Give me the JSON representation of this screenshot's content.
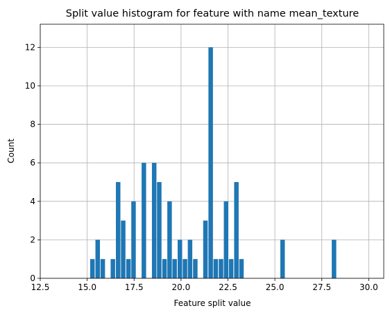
{
  "chart_data": {
    "type": "bar",
    "title": "Split value histogram for feature with name mean_texture",
    "xlabel": "Feature split value",
    "ylabel": "Count",
    "xlim": [
      12.5,
      30.8
    ],
    "ylim": [
      0,
      13.2
    ],
    "xticks": [
      12.5,
      15.0,
      17.5,
      20.0,
      22.5,
      25.0,
      27.5,
      30.0
    ],
    "xtick_labels": [
      "12.5",
      "15.0",
      "17.5",
      "20.0",
      "22.5",
      "25.0",
      "27.5",
      "30.0"
    ],
    "yticks": [
      0,
      2,
      4,
      6,
      8,
      10,
      12
    ],
    "ytick_labels": [
      "0",
      "2",
      "4",
      "6",
      "8",
      "10",
      "12"
    ],
    "grid": true,
    "bar_color": "#1f77b4",
    "bar_width": 0.24,
    "x": [
      15.28,
      15.56,
      15.83,
      16.37,
      16.65,
      16.92,
      17.2,
      17.47,
      18.02,
      18.57,
      18.84,
      19.12,
      19.39,
      19.66,
      19.94,
      20.21,
      20.48,
      20.76,
      21.3,
      21.58,
      21.85,
      22.13,
      22.4,
      22.67,
      22.95,
      23.22,
      25.41,
      28.15
    ],
    "values": [
      1,
      2,
      1,
      1,
      5,
      3,
      1,
      4,
      6,
      6,
      5,
      1,
      4,
      1,
      2,
      1,
      2,
      1,
      3,
      12,
      1,
      1,
      4,
      1,
      5,
      1,
      2,
      2
    ]
  }
}
